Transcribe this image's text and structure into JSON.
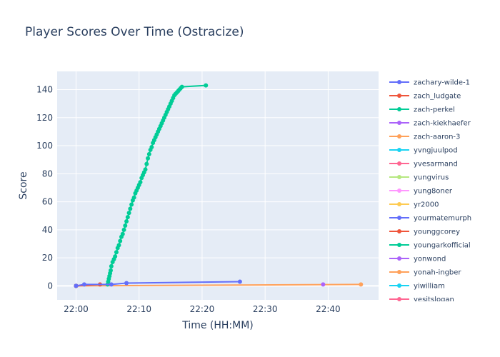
{
  "chart_data": {
    "type": "line",
    "title": "Player Scores Over Time (Ostracize)",
    "xlabel": "Time (HH:MM)",
    "ylabel": "Score",
    "x_unit": "minutes after 22:00",
    "xlim": [
      -3.0,
      48.0
    ],
    "ylim": [
      -10,
      153
    ],
    "x_ticks": [
      {
        "value": 0,
        "label": "22:00"
      },
      {
        "value": 10,
        "label": "22:10"
      },
      {
        "value": 20,
        "label": "22:20"
      },
      {
        "value": 30,
        "label": "22:30"
      },
      {
        "value": 40,
        "label": "22:40"
      }
    ],
    "y_ticks": [
      0,
      20,
      40,
      60,
      80,
      100,
      120,
      140
    ],
    "grid": true,
    "legend_position": "right",
    "series": [
      {
        "name": "zachary-wilde-1",
        "color": "#636efa",
        "x": [
          0.0,
          1.3,
          5.6,
          8.0,
          26.0
        ],
        "y": [
          0,
          1,
          1,
          2,
          3
        ]
      },
      {
        "name": "zach_ludgate",
        "color": "#EF553B",
        "x": [
          0.0,
          3.8
        ],
        "y": [
          0,
          1
        ]
      },
      {
        "name": "zach-perkel",
        "color": "#00cc96",
        "x": [
          5.0,
          5.1,
          5.2,
          5.3,
          5.4,
          5.5,
          5.6,
          5.8,
          6.0,
          6.2,
          6.4,
          6.6,
          6.8,
          7.0,
          7.2,
          7.4,
          7.6,
          7.8,
          8.0,
          8.2,
          8.4,
          8.6,
          8.8,
          9.0,
          9.2,
          9.4,
          9.6,
          9.8,
          10.0,
          10.2,
          10.4,
          10.6,
          10.8,
          11.0,
          11.2,
          11.4,
          11.6,
          11.8,
          12.0,
          12.2,
          12.4,
          12.6,
          12.8,
          13.0,
          13.2,
          13.4,
          13.6,
          13.8,
          14.0,
          14.2,
          14.4,
          14.6,
          14.8,
          15.0,
          15.2,
          15.4,
          15.6,
          15.8,
          16.0,
          16.2,
          16.4,
          16.6,
          16.8,
          20.6
        ],
        "y": [
          1,
          3,
          5,
          7,
          9,
          11,
          14,
          17,
          19,
          21,
          24,
          27,
          29,
          32,
          35,
          37,
          40,
          43,
          46,
          49,
          52,
          55,
          58,
          61,
          63,
          66,
          68,
          70,
          72,
          74,
          77,
          79,
          81,
          83,
          87,
          91,
          94,
          97,
          99,
          102,
          104,
          106,
          108,
          110,
          112,
          114,
          116,
          118,
          120,
          122,
          124,
          126,
          128,
          130,
          132,
          134,
          136,
          137,
          138,
          139,
          140,
          141,
          142,
          143
        ]
      },
      {
        "name": "zach-kiekhaefer",
        "color": "#ab63fa",
        "x": [
          39.2
        ],
        "y": [
          1
        ]
      },
      {
        "name": "zach-aaron-3",
        "color": "#FFA15A",
        "x": [
          45.2,
          0.0
        ],
        "y": [
          1,
          0
        ]
      },
      {
        "name": "yvngjuulpod",
        "color": "#19d3f3",
        "x": [
          0.0
        ],
        "y": [
          0
        ]
      },
      {
        "name": "yvesarmand",
        "color": "#FF6692",
        "x": [
          0.0
        ],
        "y": [
          0
        ]
      },
      {
        "name": "yungvirus",
        "color": "#B6E880",
        "x": [
          0.0
        ],
        "y": [
          0
        ]
      },
      {
        "name": "yung8oner",
        "color": "#FF97FF",
        "x": [
          0.0
        ],
        "y": [
          0
        ]
      },
      {
        "name": "yr2000",
        "color": "#FECB52",
        "x": [
          0.0
        ],
        "y": [
          0
        ]
      },
      {
        "name": "yourmatemurph",
        "color": "#636efa",
        "x": [
          0.0
        ],
        "y": [
          0
        ]
      },
      {
        "name": "younggcorey",
        "color": "#EF553B",
        "x": [
          0.0
        ],
        "y": [
          0
        ]
      },
      {
        "name": "youngarkofficial",
        "color": "#00cc96",
        "x": [
          0.0
        ],
        "y": [
          0
        ]
      },
      {
        "name": "yonwond",
        "color": "#ab63fa",
        "x": [
          0.0
        ],
        "y": [
          0
        ]
      },
      {
        "name": "yonah-ingber",
        "color": "#FFA15A",
        "x": [
          0.0
        ],
        "y": [
          0
        ]
      },
      {
        "name": "yiwilliam",
        "color": "#19d3f3",
        "x": [
          0.0
        ],
        "y": [
          0
        ]
      },
      {
        "name": "yesitslogan",
        "color": "#FF6692",
        "x": [
          0.0
        ],
        "y": [
          0
        ]
      }
    ]
  }
}
